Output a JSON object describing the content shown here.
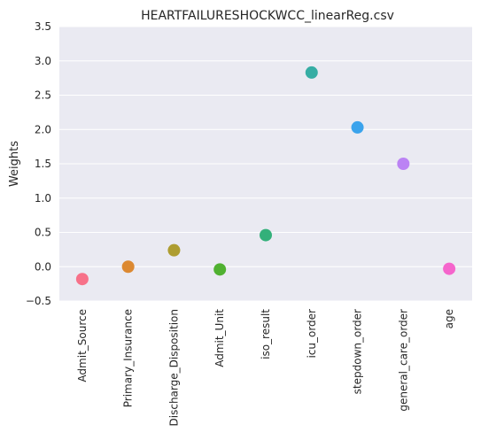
{
  "chart_data": {
    "type": "scatter",
    "title": "HEARTFAILURESHOCKWCC_linearReg.csv",
    "xlabel": "",
    "ylabel": "Weights",
    "ylim": [
      -0.5,
      3.5
    ],
    "yticks": [
      "−0.5",
      "0.0",
      "0.5",
      "1.0",
      "1.5",
      "2.0",
      "2.5",
      "3.0",
      "3.5"
    ],
    "grid": true,
    "categories": [
      "Admit_Source",
      "Primary_Insurance",
      "Discharge_Disposition",
      "Admit_Unit",
      "iso_result",
      "icu_order",
      "stepdown_order",
      "general_care_order",
      "age"
    ],
    "values": [
      -0.18,
      0.0,
      0.24,
      -0.04,
      0.46,
      2.83,
      2.03,
      1.5,
      -0.03
    ],
    "colors": [
      "#f77189",
      "#dc8932",
      "#ae9d31",
      "#50b131",
      "#33b07a",
      "#36ada4",
      "#3ba3ec",
      "#bb83f4",
      "#f565cc"
    ]
  }
}
